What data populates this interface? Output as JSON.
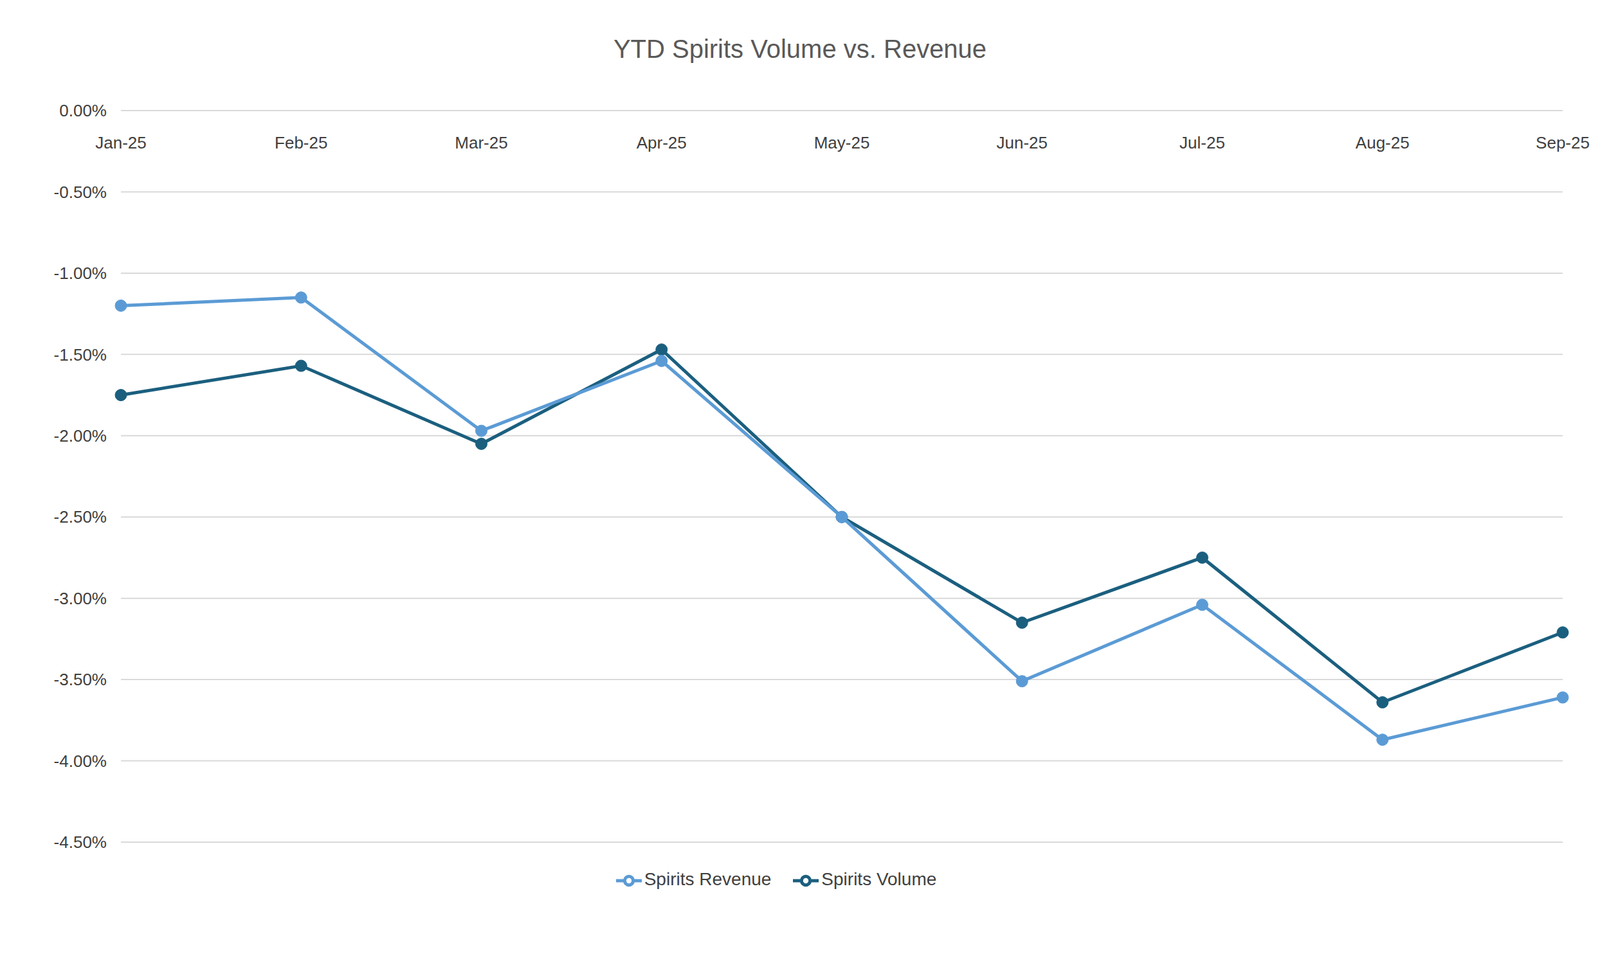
{
  "chart_data": {
    "type": "line",
    "title": "YTD Spirits Volume vs. Revenue",
    "categories": [
      "Jan-25",
      "Feb-25",
      "Mar-25",
      "Apr-25",
      "May-25",
      "Jun-25",
      "Jul-25",
      "Aug-25",
      "Sep-25"
    ],
    "series": [
      {
        "name": "Spirits Volume",
        "color": "#1b5f7f",
        "marker": "circle",
        "values": [
          -1.75,
          -1.57,
          -2.05,
          -1.47,
          -2.5,
          -3.15,
          -2.75,
          -3.64,
          -3.21
        ]
      },
      {
        "name": "Spirits Revenue",
        "color": "#5b9bd5",
        "marker": "circle",
        "values": [
          -1.2,
          -1.15,
          -1.97,
          -1.54,
          -2.5,
          -3.51,
          -3.04,
          -3.87,
          -3.61
        ]
      }
    ],
    "ylim": [
      -4.5,
      0
    ],
    "yticks": [
      {
        "value": 0,
        "label": "0.00%"
      },
      {
        "value": -0.5,
        "label": "-0.50%"
      },
      {
        "value": -1,
        "label": "-1.00%"
      },
      {
        "value": -1.5,
        "label": "-1.50%"
      },
      {
        "value": -2,
        "label": "-2.00%"
      },
      {
        "value": -2.5,
        "label": "-2.50%"
      },
      {
        "value": -3,
        "label": "-3.00%"
      },
      {
        "value": -3.5,
        "label": "-3.50%"
      },
      {
        "value": -4,
        "label": "-4.00%"
      },
      {
        "value": -4.5,
        "label": "-4.50%"
      }
    ],
    "grid": true,
    "legend": "bottom"
  }
}
